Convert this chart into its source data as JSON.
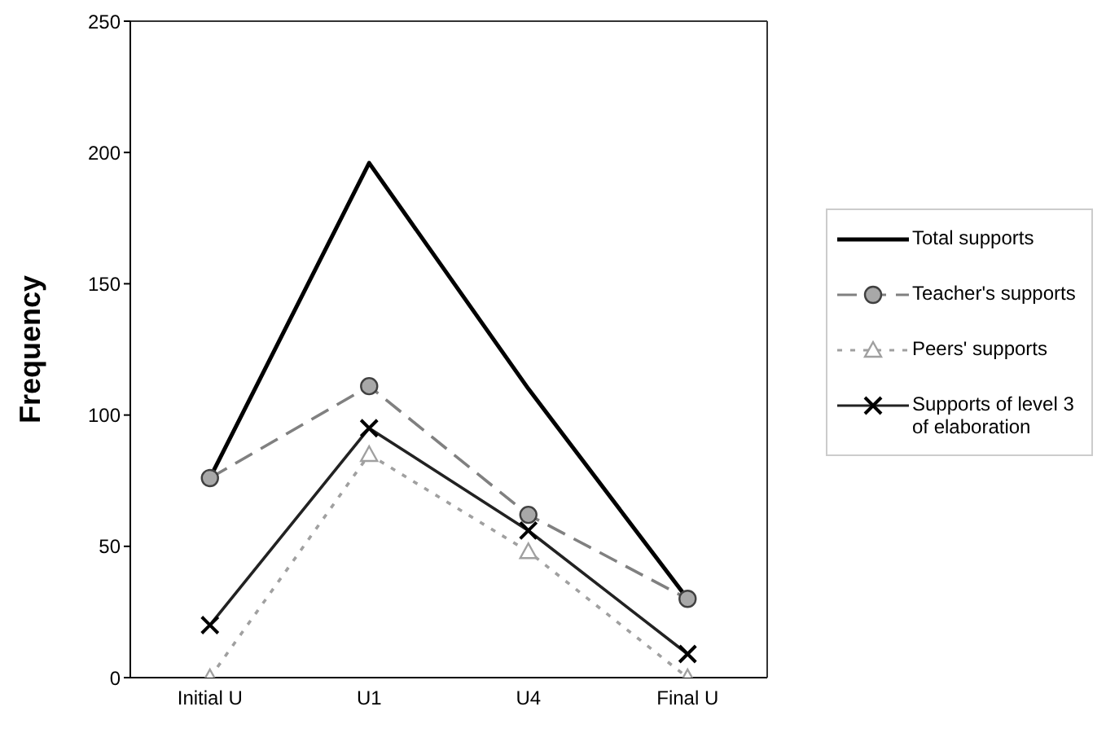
{
  "chart_data": {
    "type": "line",
    "ylabel": "Frequency",
    "categories": [
      "Initial U",
      "U1",
      "U4",
      "Final U"
    ],
    "ylim": [
      0,
      250
    ],
    "yticks": [
      0,
      50,
      100,
      150,
      200,
      250
    ],
    "grid": false,
    "legend": "right",
    "series": [
      {
        "name": "Total supports",
        "color": "#000000",
        "values": [
          76,
          196,
          110,
          30
        ],
        "line_style": "solid"
      },
      {
        "name": "Teacher's supports",
        "color": "#808080",
        "values": [
          76,
          111,
          62,
          30
        ],
        "marker": "circle",
        "line_style": "dashed"
      },
      {
        "name": "Peers' supports",
        "color": "#a0a0a0",
        "values": [
          0,
          85,
          48,
          0
        ],
        "marker": "triangle",
        "line_style": "dotted"
      },
      {
        "name": "Supports of level 3 of elaboration",
        "color": "#222222",
        "values": [
          20,
          95,
          56,
          9
        ],
        "marker": "cross",
        "line_style": "solid"
      }
    ]
  }
}
